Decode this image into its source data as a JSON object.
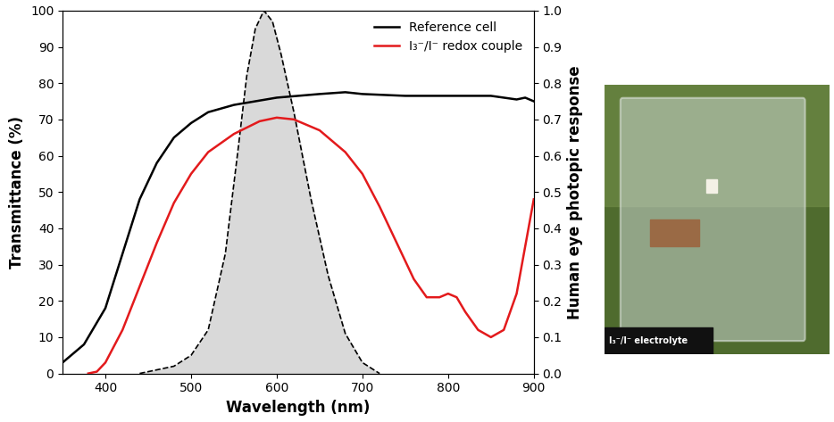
{
  "chart_data": {
    "type": "line",
    "x_label": "Wavelength (nm)",
    "y_label": "Transmittance (%)",
    "y2_label": "Human eye photopic response",
    "xlim": [
      350,
      900
    ],
    "xticks": [
      400,
      500,
      600,
      700,
      800,
      900
    ],
    "ylim": [
      0,
      100
    ],
    "yticks": [
      0,
      10,
      20,
      30,
      40,
      50,
      60,
      70,
      80,
      90,
      100
    ],
    "y2lim": [
      0,
      1.0
    ],
    "y2ticks": [
      {
        "value": 0,
        "label": "0.0"
      },
      0.1,
      0.2,
      0.3,
      0.4,
      0.5,
      0.6,
      0.7,
      0.8,
      0.9,
      {
        "value": 1.0,
        "label": "1.0"
      }
    ],
    "legend": "upper right",
    "series": [
      {
        "name": "Reference cell",
        "color": "#000000",
        "line_style": "solid",
        "type": "line",
        "x": [
          350,
          375,
          400,
          420,
          440,
          460,
          480,
          500,
          520,
          550,
          600,
          650,
          680,
          700,
          750,
          800,
          850,
          880,
          890,
          900
        ],
        "values": [
          3,
          8,
          18,
          33,
          48,
          58,
          65,
          69,
          72,
          74,
          76,
          77,
          77.5,
          77,
          76.5,
          76.5,
          76.5,
          75.5,
          76,
          75
        ]
      },
      {
        "name": "I₃⁻/I⁻ redox couple",
        "color": "#e31a1c",
        "line_style": "solid",
        "type": "line",
        "x": [
          380,
          390,
          400,
          420,
          440,
          460,
          480,
          500,
          520,
          550,
          580,
          600,
          620,
          650,
          680,
          700,
          720,
          740,
          760,
          775,
          790,
          800,
          810,
          820,
          835,
          850,
          865,
          880,
          890,
          900
        ],
        "values": [
          0,
          0.5,
          3,
          12,
          24,
          36,
          47,
          55,
          61,
          66,
          69.5,
          70.5,
          70,
          67,
          61,
          55,
          46,
          36,
          26,
          21,
          21,
          22,
          21,
          17,
          12,
          10,
          12,
          22,
          35,
          48
        ]
      },
      {
        "color": "#000000",
        "line_style": "dashed",
        "type": "area",
        "axis": "y2",
        "x": [
          440,
          460,
          480,
          500,
          520,
          540,
          555,
          565,
          575,
          585,
          595,
          605,
          620,
          640,
          660,
          680,
          700,
          720
        ],
        "values": [
          0,
          0.01,
          0.02,
          0.05,
          0.12,
          0.33,
          0.62,
          0.82,
          0.95,
          1.0,
          0.97,
          0.88,
          0.72,
          0.48,
          0.27,
          0.11,
          0.03,
          0
        ]
      }
    ]
  },
  "photo": {
    "caption": "I₃⁻/I⁻ electrolyte"
  }
}
